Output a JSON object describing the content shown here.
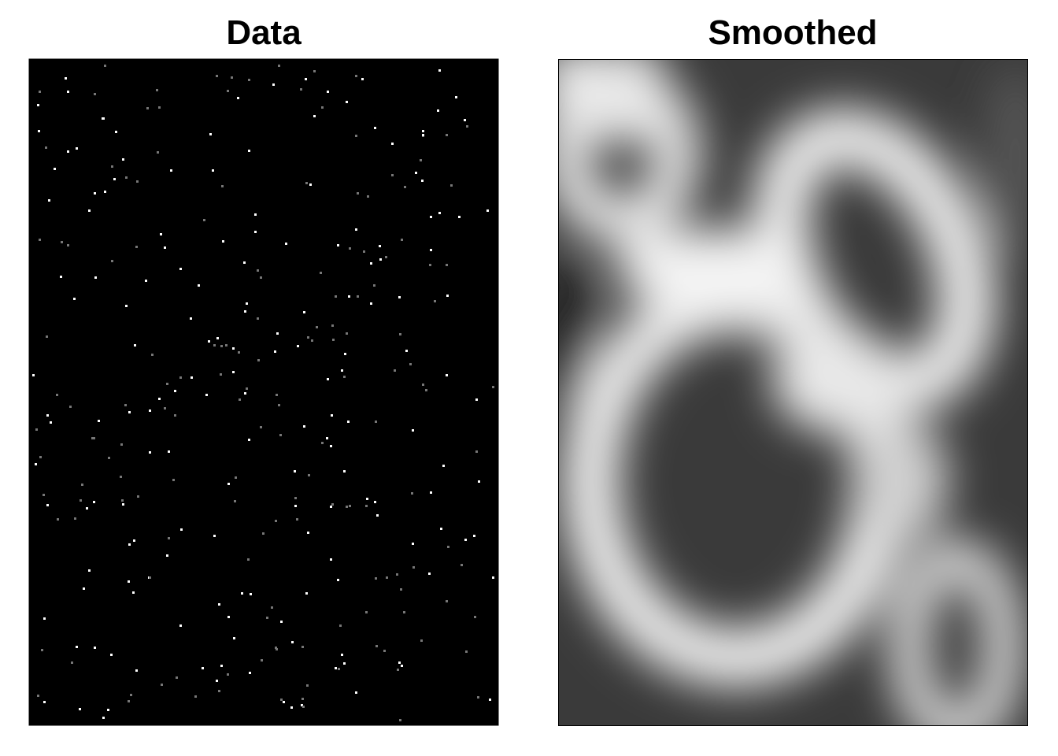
{
  "panels": [
    {
      "title": "Data"
    },
    {
      "title": "Smoothed"
    }
  ]
}
